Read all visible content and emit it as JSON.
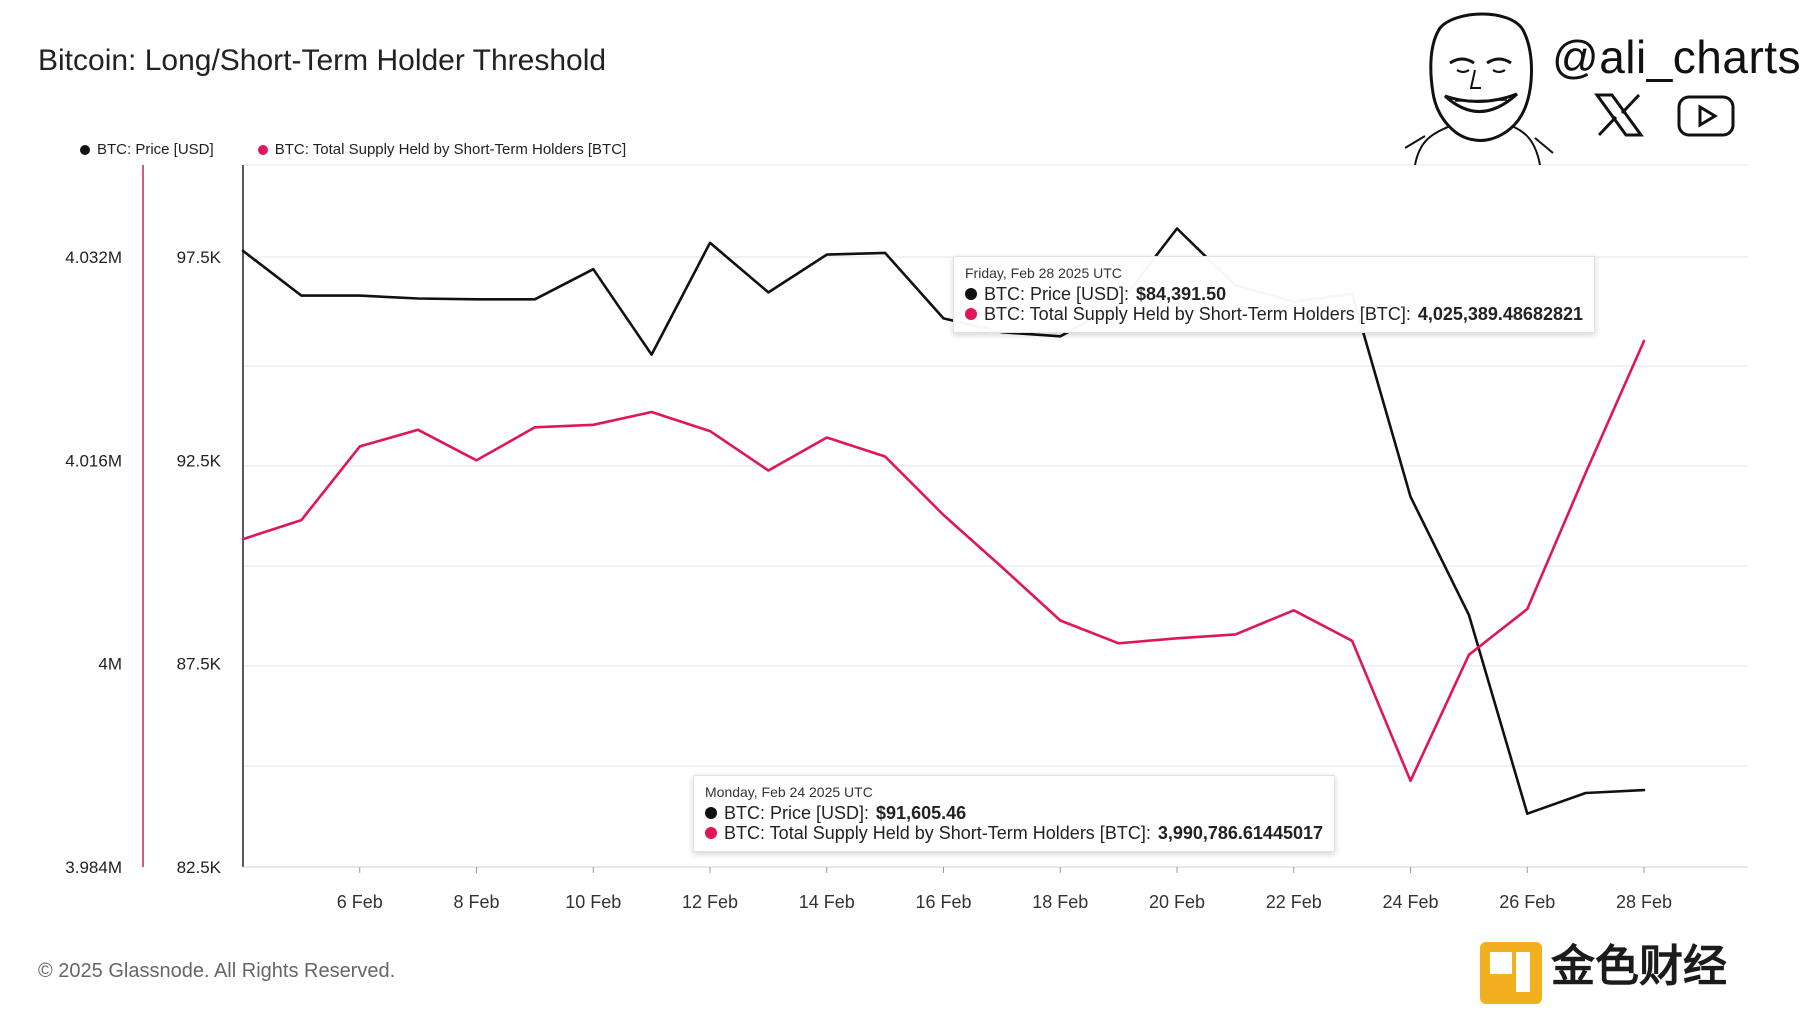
{
  "title": "Bitcoin: Long/Short-Term Holder Threshold",
  "legend": [
    {
      "label": "BTC: Price [USD]",
      "color": "#111111"
    },
    {
      "label": "BTC: Total Supply Held by Short-Term Holders [BTC]",
      "color": "#e0165a"
    }
  ],
  "branding": {
    "handle": "@ali_charts",
    "icons": [
      "avatar-face-icon",
      "x-logo-icon",
      "youtube-icon"
    ],
    "watermark": "金色财经",
    "footer": "© 2025 Glassnode. All Rights Reserved."
  },
  "chart_data": {
    "type": "line",
    "x": [
      "4 Feb",
      "5 Feb",
      "6 Feb",
      "7 Feb",
      "8 Feb",
      "9 Feb",
      "10 Feb",
      "11 Feb",
      "12 Feb",
      "13 Feb",
      "14 Feb",
      "15 Feb",
      "16 Feb",
      "17 Feb",
      "18 Feb",
      "19 Feb",
      "20 Feb",
      "21 Feb",
      "22 Feb",
      "23 Feb",
      "24 Feb",
      "25 Feb",
      "26 Feb",
      "27 Feb",
      "28 Feb"
    ],
    "x_tick_labels": [
      "6 Feb",
      "8 Feb",
      "10 Feb",
      "12 Feb",
      "14 Feb",
      "16 Feb",
      "18 Feb",
      "20 Feb",
      "22 Feb",
      "24 Feb",
      "26 Feb",
      "28 Feb"
    ],
    "series": [
      {
        "name": "BTC: Price [USD]",
        "axis": "right-inner",
        "color": "#111111",
        "values": [
          97650,
          96550,
          96550,
          96480,
          96460,
          96460,
          97200,
          95100,
          97850,
          96630,
          97560,
          97600,
          95990,
          95650,
          95550,
          96330,
          98200,
          96800,
          96400,
          96600,
          91605.46,
          88700,
          83810,
          84320,
          84391.5
        ]
      },
      {
        "name": "BTC: Total Supply Held by Short-Term Holders [BTC]",
        "axis": "left-outer",
        "color": "#e0165a",
        "values": [
          4009800,
          4011300,
          4017100,
          4018400,
          4016000,
          4018600,
          4018800,
          4019800,
          4018300,
          4015200,
          4017800,
          4016300,
          4011700,
          4007600,
          4003400,
          4001600,
          4002000,
          4002300,
          4004200,
          4001800,
          3990786.61445017,
          4000700,
          4004300,
          4015000,
          4025389.48682821
        ]
      }
    ],
    "y_left": {
      "ticks": [
        "4.032M",
        "4.016M",
        "4M",
        "3.984M"
      ],
      "tick_values": [
        4032000,
        4016000,
        4000000,
        3984000
      ],
      "range": [
        3984000,
        4032000
      ]
    },
    "y_right": {
      "ticks": [
        "97.5K",
        "92.5K",
        "87.5K",
        "82.5K"
      ],
      "tick_values": [
        97500,
        92500,
        87500,
        82500
      ],
      "range": [
        82500,
        97500
      ]
    },
    "grid": true,
    "legend_position": "top-left"
  },
  "tooltips": [
    {
      "date": "Friday, Feb 28 2025 UTC",
      "rows": [
        {
          "label": "BTC: Price [USD]: ",
          "value": "$84,391.50",
          "color": "#111111"
        },
        {
          "label": "BTC: Total Supply Held by Short-Term Holders [BTC]: ",
          "value": "4,025,389.48682821",
          "color": "#e0165a"
        }
      ]
    },
    {
      "date": "Monday, Feb 24 2025 UTC",
      "rows": [
        {
          "label": "BTC: Price [USD]: ",
          "value": "$91,605.46",
          "color": "#111111"
        },
        {
          "label": "BTC: Total Supply Held by Short-Term Holders [BTC]: ",
          "value": "3,990,786.61445017",
          "color": "#e0165a"
        }
      ]
    }
  ]
}
